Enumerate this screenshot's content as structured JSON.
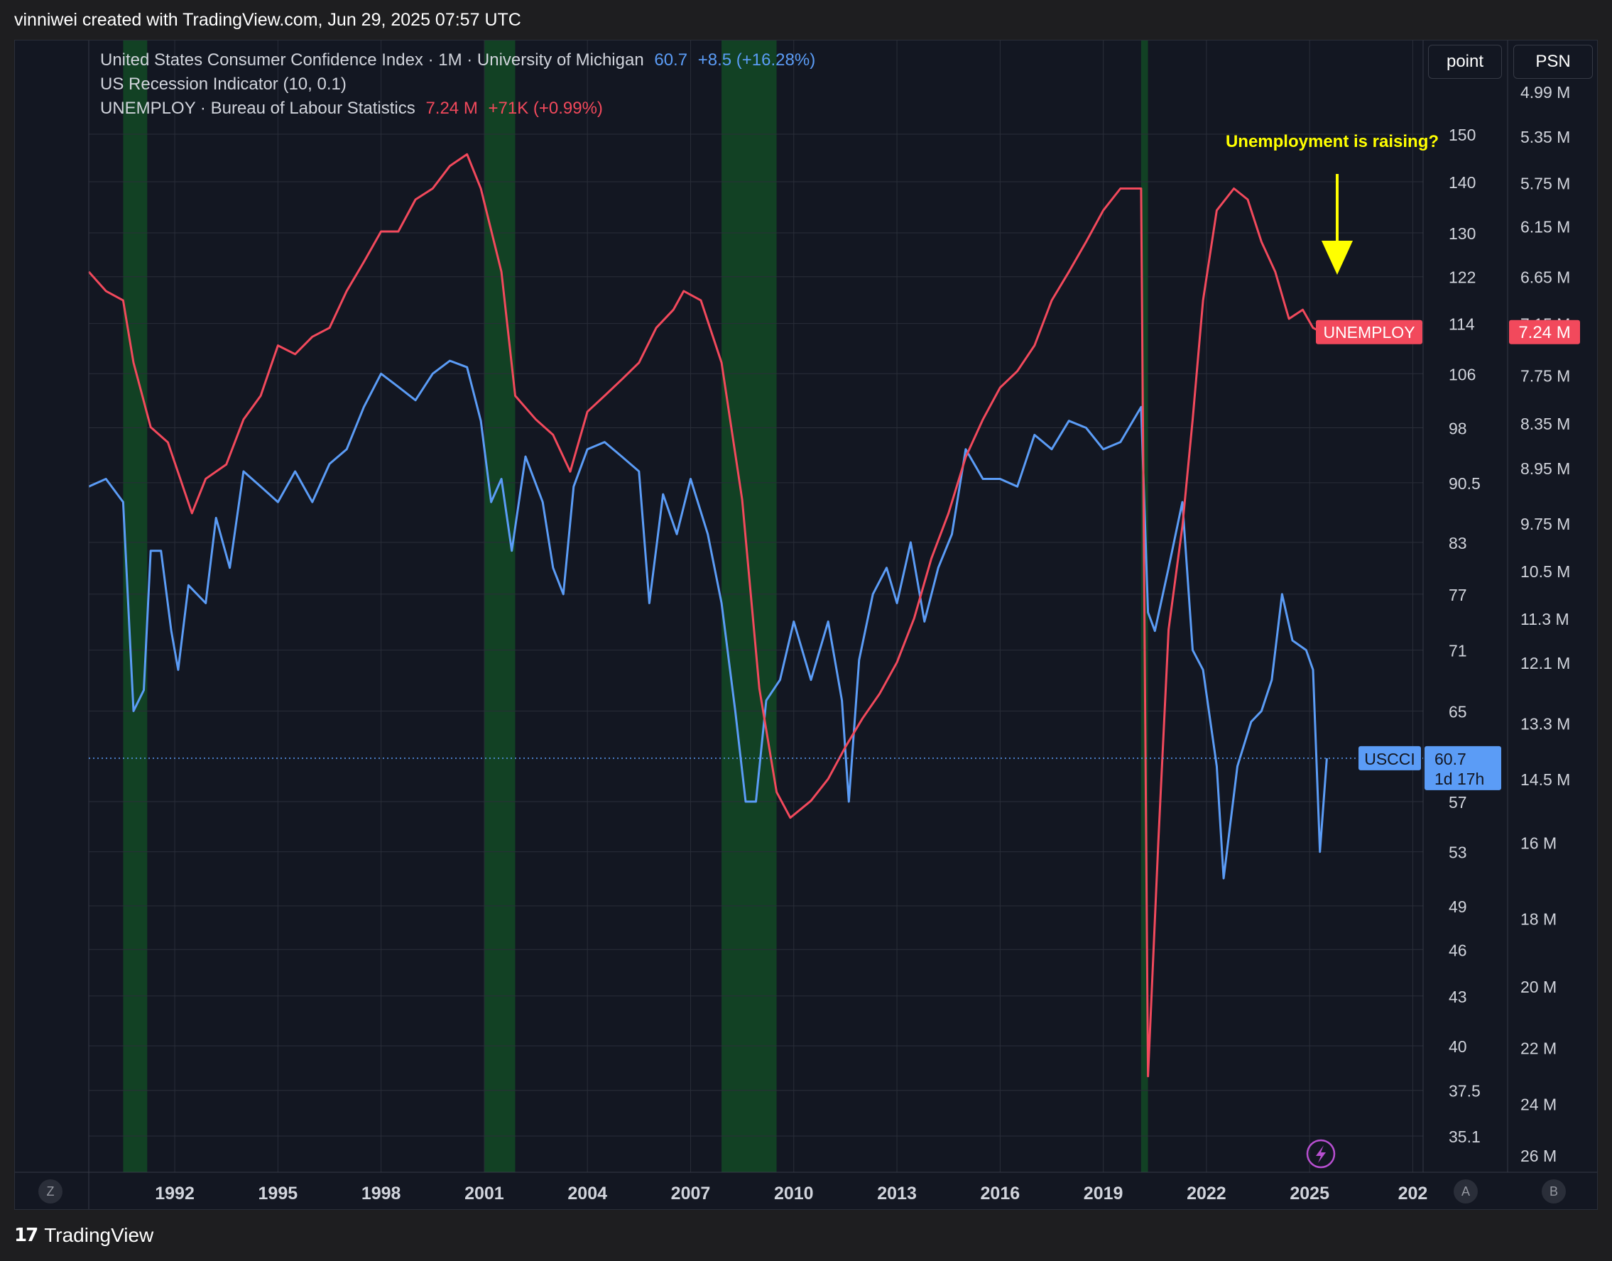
{
  "header": {
    "caption": "vinniwei created with TradingView.com, Jun 29, 2025 07:57 UTC"
  },
  "legend": {
    "line1": {
      "label": "United States Consumer Confidence Index · 1M · University of Michigan",
      "value": "60.7",
      "change": "+8.5 (+16.28%)"
    },
    "line2": {
      "label": "US Recession Indicator (10, 0.1)"
    },
    "line3": {
      "label": "UNEMPLOY · Bureau of Labour Statistics",
      "value": "7.24 M",
      "change": "+71K (+0.99%)"
    }
  },
  "scale_buttons": {
    "left": "point",
    "right": "PSN"
  },
  "annotation": {
    "text": "Unemployment is raising?",
    "color": "#ffff00"
  },
  "axis_letters": {
    "time": "Z",
    "left": "A",
    "right": "B"
  },
  "footer": {
    "logo": "17",
    "brand": "TradingView"
  },
  "colors": {
    "background": "#131722",
    "uscci": "#5b9cf6",
    "unemploy": "#f2495c",
    "recession": "#124124",
    "grid": "#2a2e39"
  },
  "chart_data": {
    "type": "line",
    "x_ticks": [
      "1992",
      "1995",
      "1998",
      "2001",
      "2004",
      "2007",
      "2010",
      "2013",
      "2016",
      "2019",
      "2022",
      "2025",
      "202"
    ],
    "xlim": [
      1989.5,
      2028.3
    ],
    "left_axis": {
      "scale": "log",
      "ticks": [
        "150",
        "140",
        "130",
        "122",
        "114",
        "106",
        "98",
        "90.5",
        "83",
        "77",
        "71",
        "65",
        "57",
        "53",
        "49",
        "46",
        "43",
        "40",
        "37.5",
        "35.1"
      ],
      "last_label": {
        "series": "USCCI",
        "value": "60.7",
        "countdown": "1d 17h"
      }
    },
    "right_axis": {
      "scale": "log, inverted",
      "ticks": [
        "4.99 M",
        "5.35 M",
        "5.75 M",
        "6.15 M",
        "6.65 M",
        "7.15 M",
        "7.75 M",
        "8.35 M",
        "8.95 M",
        "9.75 M",
        "10.5 M",
        "11.3 M",
        "12.1 M",
        "13.3 M",
        "14.5 M",
        "16 M",
        "18 M",
        "20 M",
        "22 M",
        "24 M",
        "26 M"
      ],
      "last_label": {
        "series": "UNEMPLOY",
        "value": "7.24 M"
      }
    },
    "recessions": [
      [
        1990.5,
        1991.2
      ],
      [
        2001.0,
        2001.9
      ],
      [
        2007.9,
        2009.5
      ],
      [
        2020.1,
        2020.3
      ]
    ],
    "series": [
      {
        "name": "USCCI",
        "axis": "left",
        "points": [
          [
            1989.5,
            90
          ],
          [
            1990.0,
            91
          ],
          [
            1990.5,
            88
          ],
          [
            1990.8,
            65
          ],
          [
            1991.1,
            67
          ],
          [
            1991.3,
            82
          ],
          [
            1991.6,
            82
          ],
          [
            1991.9,
            73
          ],
          [
            1992.1,
            69
          ],
          [
            1992.4,
            78
          ],
          [
            1992.9,
            76
          ],
          [
            1993.2,
            86
          ],
          [
            1993.6,
            80
          ],
          [
            1994.0,
            92
          ],
          [
            1994.5,
            90
          ],
          [
            1995.0,
            88
          ],
          [
            1995.5,
            92
          ],
          [
            1996.0,
            88
          ],
          [
            1996.5,
            93
          ],
          [
            1997.0,
            95
          ],
          [
            1997.5,
            101
          ],
          [
            1998.0,
            106
          ],
          [
            1998.5,
            104
          ],
          [
            1999.0,
            102
          ],
          [
            1999.5,
            106
          ],
          [
            2000.0,
            108
          ],
          [
            2000.5,
            107
          ],
          [
            2000.9,
            99
          ],
          [
            2001.2,
            88
          ],
          [
            2001.5,
            91
          ],
          [
            2001.8,
            82
          ],
          [
            2002.2,
            94
          ],
          [
            2002.7,
            88
          ],
          [
            2003.0,
            80
          ],
          [
            2003.3,
            77
          ],
          [
            2003.6,
            90
          ],
          [
            2004.0,
            95
          ],
          [
            2004.5,
            96
          ],
          [
            2005.0,
            94
          ],
          [
            2005.5,
            92
          ],
          [
            2005.8,
            76
          ],
          [
            2006.2,
            89
          ],
          [
            2006.6,
            84
          ],
          [
            2007.0,
            91
          ],
          [
            2007.5,
            84
          ],
          [
            2007.9,
            76
          ],
          [
            2008.3,
            65
          ],
          [
            2008.6,
            57
          ],
          [
            2008.9,
            57
          ],
          [
            2009.2,
            66
          ],
          [
            2009.6,
            68
          ],
          [
            2010.0,
            74
          ],
          [
            2010.5,
            68
          ],
          [
            2011.0,
            74
          ],
          [
            2011.4,
            66
          ],
          [
            2011.6,
            57
          ],
          [
            2011.9,
            70
          ],
          [
            2012.3,
            77
          ],
          [
            2012.7,
            80
          ],
          [
            2013.0,
            76
          ],
          [
            2013.4,
            83
          ],
          [
            2013.8,
            74
          ],
          [
            2014.2,
            80
          ],
          [
            2014.6,
            84
          ],
          [
            2015.0,
            95
          ],
          [
            2015.5,
            91
          ],
          [
            2016.0,
            91
          ],
          [
            2016.5,
            90
          ],
          [
            2017.0,
            97
          ],
          [
            2017.5,
            95
          ],
          [
            2018.0,
            99
          ],
          [
            2018.5,
            98
          ],
          [
            2019.0,
            95
          ],
          [
            2019.5,
            96
          ],
          [
            2020.1,
            101
          ],
          [
            2020.3,
            75
          ],
          [
            2020.5,
            73
          ],
          [
            2020.9,
            80
          ],
          [
            2021.3,
            88
          ],
          [
            2021.6,
            71
          ],
          [
            2021.9,
            69
          ],
          [
            2022.3,
            60
          ],
          [
            2022.5,
            51
          ],
          [
            2022.9,
            60
          ],
          [
            2023.3,
            64
          ],
          [
            2023.6,
            65
          ],
          [
            2023.9,
            68
          ],
          [
            2024.2,
            77
          ],
          [
            2024.5,
            72
          ],
          [
            2024.9,
            71
          ],
          [
            2025.1,
            69
          ],
          [
            2025.3,
            53
          ],
          [
            2025.5,
            60.7
          ]
        ]
      },
      {
        "name": "UNEMPLOY",
        "axis": "right",
        "points": [
          [
            1989.5,
            6.6
          ],
          [
            1990.0,
            6.8
          ],
          [
            1990.5,
            6.9
          ],
          [
            1990.8,
            7.6
          ],
          [
            1991.3,
            8.4
          ],
          [
            1991.8,
            8.6
          ],
          [
            1992.5,
            9.6
          ],
          [
            1992.9,
            9.1
          ],
          [
            1993.5,
            8.9
          ],
          [
            1994.0,
            8.3
          ],
          [
            1994.5,
            8.0
          ],
          [
            1995.0,
            7.4
          ],
          [
            1995.5,
            7.5
          ],
          [
            1996.0,
            7.3
          ],
          [
            1996.5,
            7.2
          ],
          [
            1997.0,
            6.8
          ],
          [
            1997.5,
            6.5
          ],
          [
            1998.0,
            6.2
          ],
          [
            1998.5,
            6.2
          ],
          [
            1999.0,
            5.9
          ],
          [
            1999.5,
            5.8
          ],
          [
            2000.0,
            5.6
          ],
          [
            2000.5,
            5.5
          ],
          [
            2000.9,
            5.8
          ],
          [
            2001.5,
            6.6
          ],
          [
            2001.9,
            8.0
          ],
          [
            2002.5,
            8.3
          ],
          [
            2003.0,
            8.5
          ],
          [
            2003.5,
            9.0
          ],
          [
            2004.0,
            8.2
          ],
          [
            2004.5,
            8.0
          ],
          [
            2005.0,
            7.8
          ],
          [
            2005.5,
            7.6
          ],
          [
            2006.0,
            7.2
          ],
          [
            2006.5,
            7.0
          ],
          [
            2006.8,
            6.8
          ],
          [
            2007.3,
            6.9
          ],
          [
            2007.9,
            7.6
          ],
          [
            2008.5,
            9.4
          ],
          [
            2009.0,
            12.6
          ],
          [
            2009.5,
            14.8
          ],
          [
            2009.9,
            15.4
          ],
          [
            2010.5,
            15.0
          ],
          [
            2011.0,
            14.5
          ],
          [
            2011.5,
            13.8
          ],
          [
            2012.0,
            13.2
          ],
          [
            2012.5,
            12.7
          ],
          [
            2013.0,
            12.1
          ],
          [
            2013.5,
            11.3
          ],
          [
            2014.0,
            10.3
          ],
          [
            2014.5,
            9.6
          ],
          [
            2015.0,
            8.8
          ],
          [
            2015.5,
            8.3
          ],
          [
            2016.0,
            7.9
          ],
          [
            2016.5,
            7.7
          ],
          [
            2017.0,
            7.4
          ],
          [
            2017.5,
            6.9
          ],
          [
            2018.0,
            6.6
          ],
          [
            2018.5,
            6.3
          ],
          [
            2019.0,
            6.0
          ],
          [
            2019.5,
            5.8
          ],
          [
            2020.1,
            5.8
          ],
          [
            2020.3,
            23.0
          ],
          [
            2020.6,
            16.0
          ],
          [
            2020.9,
            11.5
          ],
          [
            2021.3,
            9.8
          ],
          [
            2021.6,
            8.3
          ],
          [
            2021.9,
            6.9
          ],
          [
            2022.3,
            6.0
          ],
          [
            2022.8,
            5.8
          ],
          [
            2023.2,
            5.9
          ],
          [
            2023.6,
            6.3
          ],
          [
            2024.0,
            6.6
          ],
          [
            2024.4,
            7.1
          ],
          [
            2024.8,
            7.0
          ],
          [
            2025.1,
            7.2
          ],
          [
            2025.3,
            7.24
          ]
        ]
      }
    ]
  }
}
